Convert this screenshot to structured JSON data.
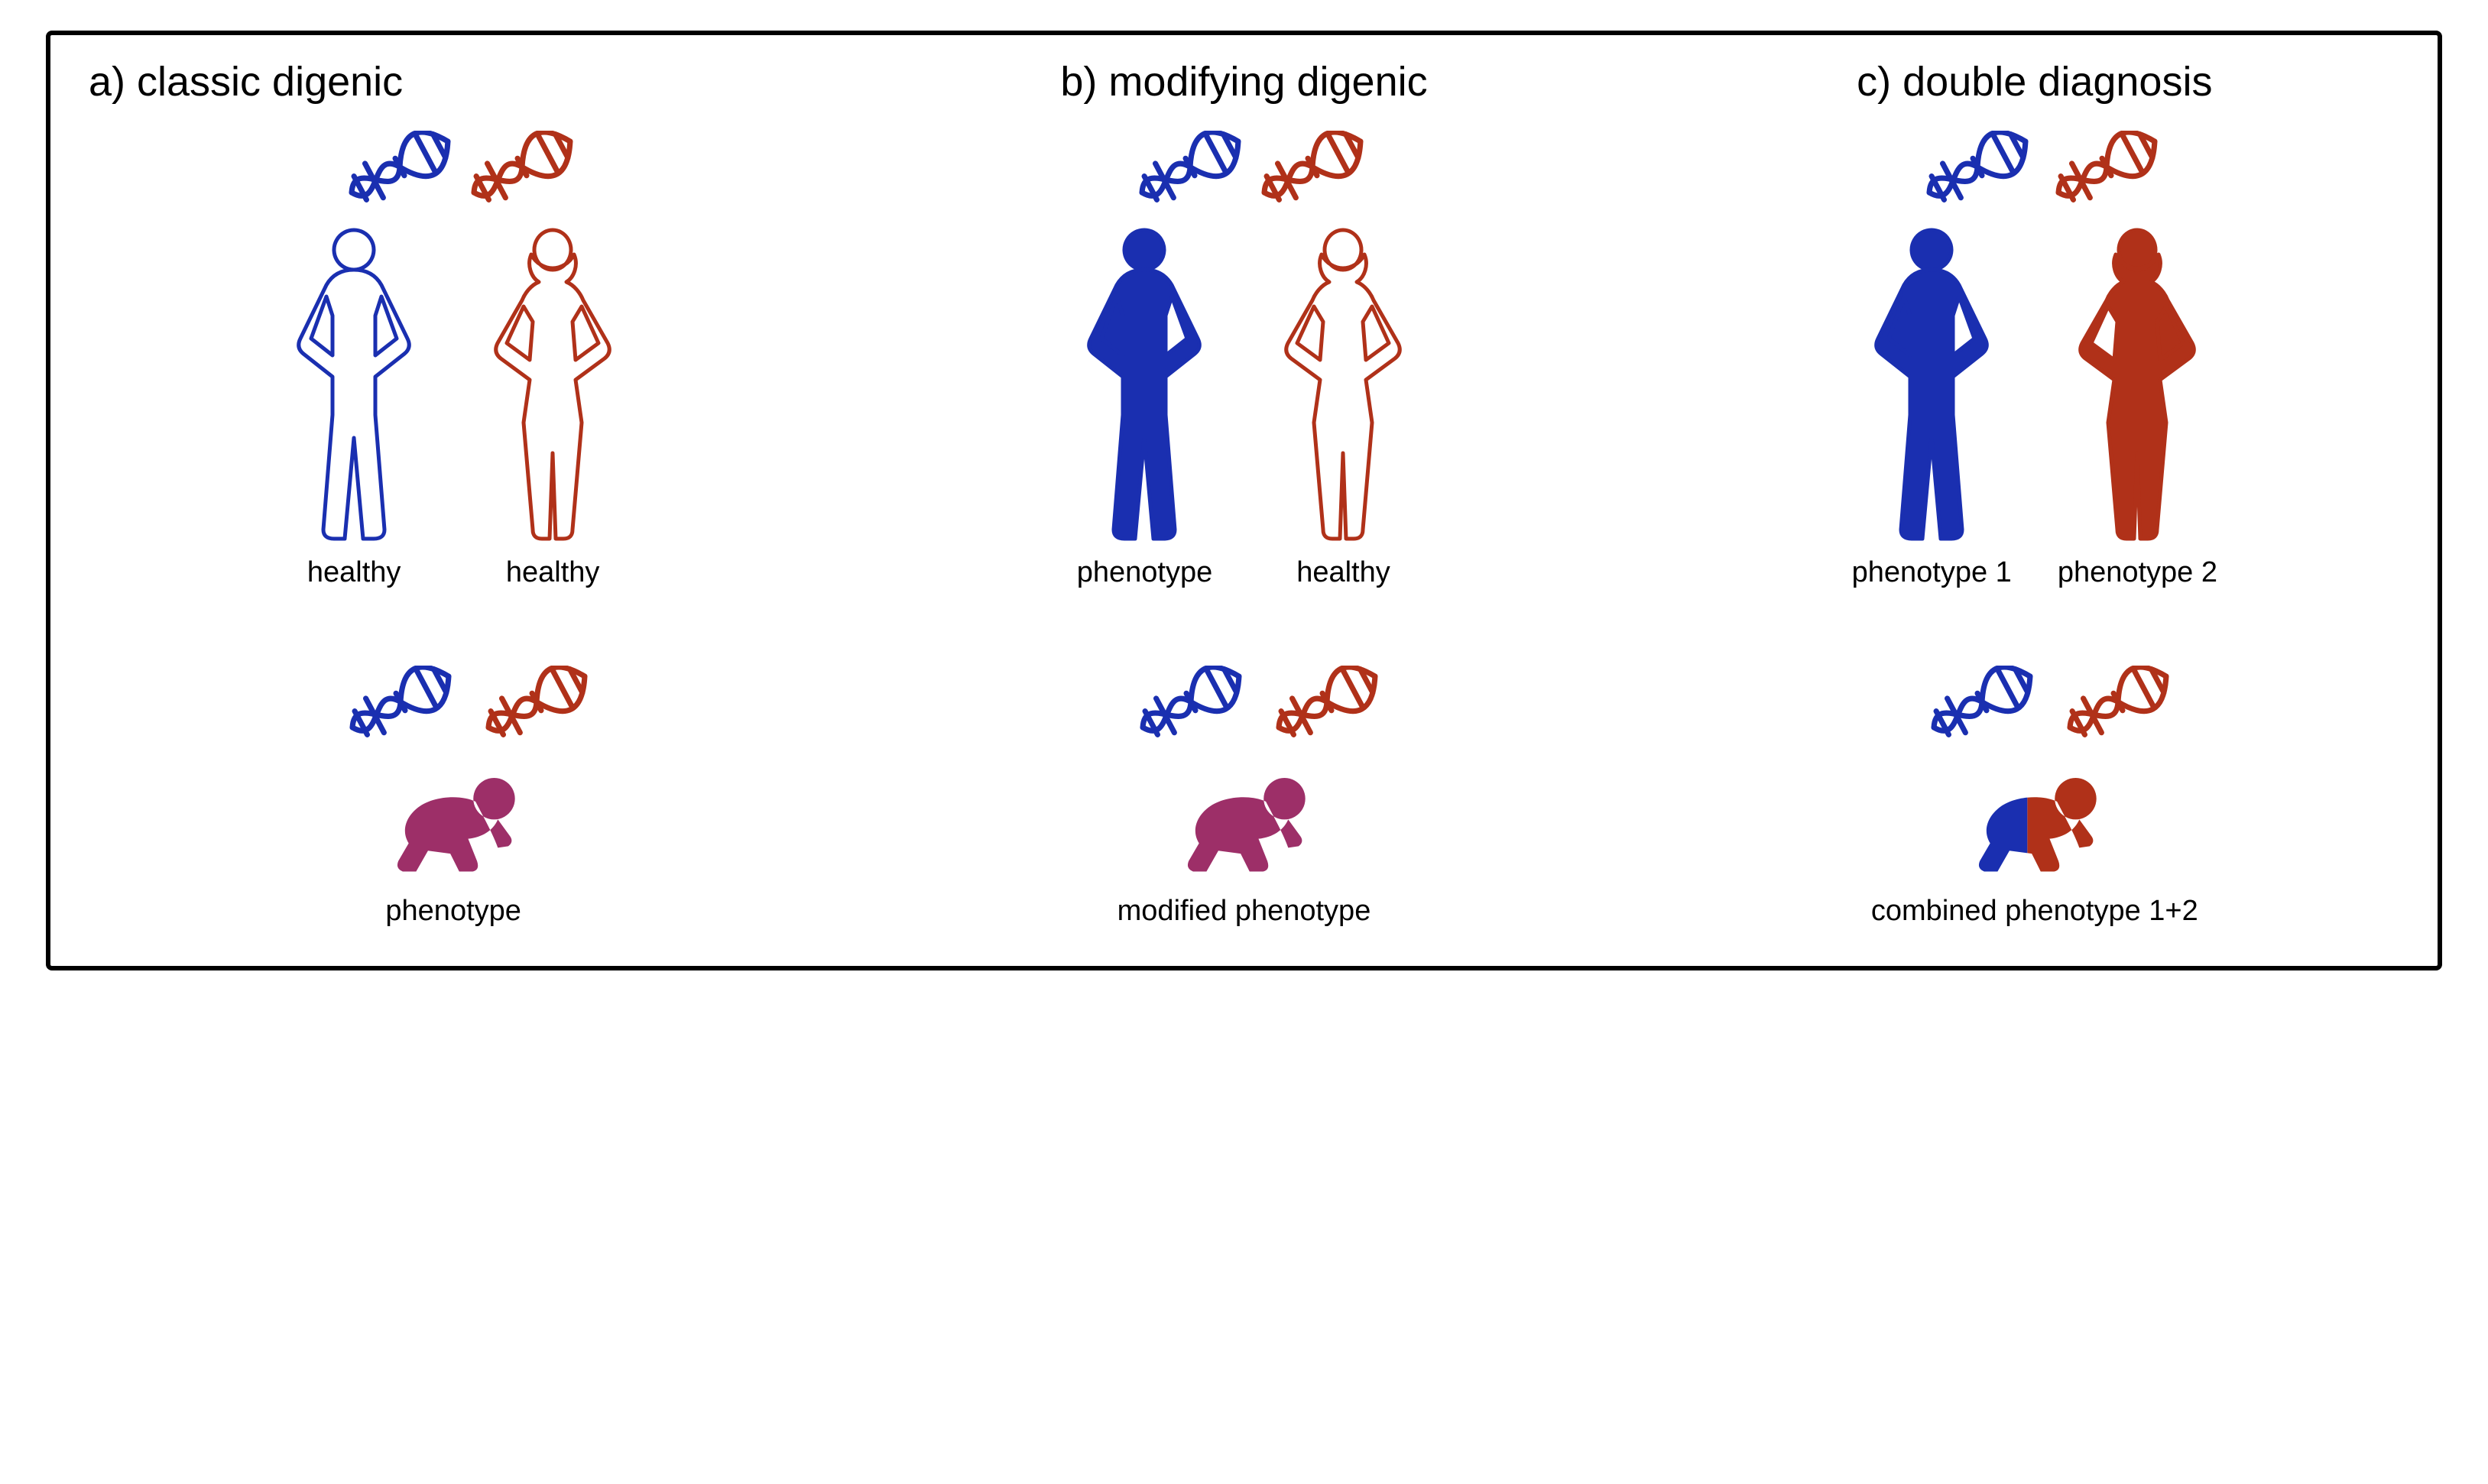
{
  "colors": {
    "blue": "#1a2fb0",
    "red": "#b03119",
    "purple": "#9d2f68",
    "white": "#ffffff",
    "black": "#000000"
  },
  "stroke": {
    "dna": 9,
    "person": 5,
    "baby": 5,
    "border": 6
  },
  "font": {
    "title_size": 54,
    "label_size": 38,
    "family": "Helvetica Neue"
  },
  "panels": {
    "a": {
      "title": "a) classic digenic",
      "parent1": {
        "dna_color": "blue",
        "fill": "white",
        "stroke": "blue",
        "label": "healthy"
      },
      "parent2": {
        "dna_color": "red",
        "fill": "white",
        "stroke": "red",
        "label": "healthy"
      },
      "child": {
        "dna_colors": [
          "blue",
          "red"
        ],
        "fill": "purple",
        "split": false,
        "label": "phenotype"
      }
    },
    "b": {
      "title": "b) modifying digenic",
      "parent1": {
        "dna_color": "blue",
        "fill": "blue",
        "stroke": "blue",
        "label": "phenotype"
      },
      "parent2": {
        "dna_color": "red",
        "fill": "white",
        "stroke": "red",
        "label": "healthy"
      },
      "child": {
        "dna_colors": [
          "blue",
          "red"
        ],
        "fill": "purple",
        "split": false,
        "label": "modified phenotype"
      }
    },
    "c": {
      "title": "c) double diagnosis",
      "parent1": {
        "dna_color": "blue",
        "fill": "blue",
        "stroke": "blue",
        "label": "phenotype 1"
      },
      "parent2": {
        "dna_color": "red",
        "fill": "red",
        "stroke": "red",
        "label": "phenotype 2"
      },
      "child": {
        "dna_colors": [
          "blue",
          "red"
        ],
        "split": true,
        "split_colors": [
          "red",
          "blue"
        ],
        "label": "combined phenotype 1+2"
      }
    }
  }
}
